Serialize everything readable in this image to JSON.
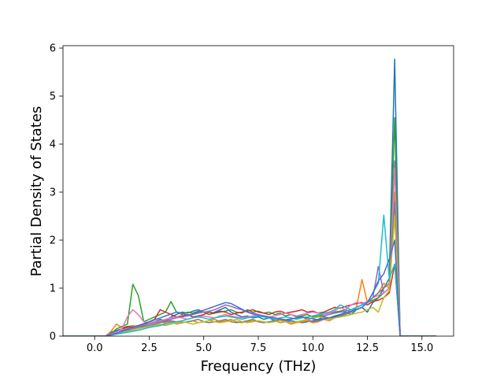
{
  "chart_data": {
    "type": "line",
    "title": "",
    "xlabel": "Frequency (THz)",
    "ylabel": "Partial Density of States",
    "xlim": [
      -1.45,
      16.45
    ],
    "ylim": [
      0,
      6.05
    ],
    "xticks": [
      0.0,
      2.5,
      5.0,
      7.5,
      10.0,
      12.5,
      15.0
    ],
    "xtick_labels": [
      "0.0",
      "2.5",
      "5.0",
      "7.5",
      "10.0",
      "12.5",
      "15.0"
    ],
    "yticks": [
      0,
      1,
      2,
      3,
      4,
      5,
      6
    ],
    "ytick_labels": [
      "0",
      "1",
      "2",
      "3",
      "4",
      "5",
      "6"
    ],
    "grid": false,
    "legend": "none",
    "x": [
      -1.45,
      0.0,
      0.5,
      0.75,
      1.0,
      1.25,
      1.5,
      1.75,
      2.0,
      2.25,
      2.5,
      2.75,
      3.0,
      3.25,
      3.5,
      3.75,
      4.0,
      4.25,
      4.5,
      4.75,
      5.0,
      5.25,
      5.5,
      5.75,
      6.0,
      6.25,
      6.5,
      6.75,
      7.0,
      7.25,
      7.5,
      7.75,
      8.0,
      8.25,
      8.5,
      8.75,
      9.0,
      9.25,
      9.5,
      9.75,
      10.0,
      10.25,
      10.5,
      10.75,
      11.0,
      11.25,
      11.5,
      11.75,
      12.0,
      12.25,
      12.5,
      12.75,
      13.0,
      13.25,
      13.5,
      13.75,
      14.0,
      14.25,
      15.65
    ],
    "series": [
      {
        "color": "#1f77b4",
        "values": [
          0,
          0,
          0,
          0.08,
          0.12,
          0.15,
          0.18,
          0.2,
          0.22,
          0.25,
          0.28,
          0.3,
          0.35,
          0.32,
          0.4,
          0.45,
          0.5,
          0.48,
          0.52,
          0.55,
          0.5,
          0.45,
          0.5,
          0.55,
          0.6,
          0.5,
          0.45,
          0.4,
          0.42,
          0.38,
          0.4,
          0.35,
          0.38,
          0.32,
          0.35,
          0.3,
          0.32,
          0.3,
          0.28,
          0.3,
          0.32,
          0.35,
          0.4,
          0.38,
          0.42,
          0.45,
          0.5,
          0.45,
          0.55,
          0.6,
          0.5,
          0.7,
          0.8,
          1.0,
          1.2,
          5.77,
          0,
          0,
          0
        ]
      },
      {
        "color": "#ff7f0e",
        "values": [
          0,
          0,
          0,
          0.1,
          0.25,
          0.18,
          0.2,
          0.22,
          0.2,
          0.18,
          0.2,
          0.25,
          0.22,
          0.28,
          0.3,
          0.25,
          0.28,
          0.3,
          0.32,
          0.28,
          0.3,
          0.32,
          0.35,
          0.3,
          0.32,
          0.35,
          0.3,
          0.28,
          0.3,
          0.32,
          0.3,
          0.28,
          0.3,
          0.32,
          0.28,
          0.3,
          0.25,
          0.28,
          0.3,
          0.32,
          0.28,
          0.3,
          0.35,
          0.32,
          0.38,
          0.4,
          0.45,
          0.5,
          0.6,
          1.18,
          0.7,
          0.8,
          0.9,
          1.1,
          1.0,
          3.0,
          0,
          0,
          0
        ]
      },
      {
        "color": "#2ca02c",
        "values": [
          0,
          0,
          0,
          0.05,
          0.15,
          0.2,
          0.25,
          1.08,
          0.85,
          0.3,
          0.35,
          0.4,
          0.45,
          0.5,
          0.72,
          0.5,
          0.45,
          0.5,
          0.48,
          0.52,
          0.5,
          0.45,
          0.48,
          0.5,
          0.52,
          0.55,
          0.5,
          0.48,
          0.55,
          0.5,
          0.52,
          0.48,
          0.5,
          0.45,
          0.48,
          0.42,
          0.45,
          0.4,
          0.42,
          0.45,
          0.4,
          0.42,
          0.45,
          0.48,
          0.5,
          0.52,
          0.55,
          0.5,
          0.6,
          0.65,
          0.7,
          0.75,
          0.8,
          0.9,
          1.0,
          4.55,
          0,
          0,
          0
        ]
      },
      {
        "color": "#d62728",
        "values": [
          0,
          0,
          0,
          0.05,
          0.1,
          0.15,
          0.2,
          0.18,
          0.22,
          0.25,
          0.3,
          0.35,
          0.55,
          0.5,
          0.45,
          0.4,
          0.42,
          0.45,
          0.4,
          0.42,
          0.45,
          0.5,
          0.48,
          0.52,
          0.5,
          0.45,
          0.48,
          0.5,
          0.52,
          0.55,
          0.5,
          0.48,
          0.45,
          0.5,
          0.52,
          0.48,
          0.5,
          0.52,
          0.55,
          0.5,
          0.52,
          0.48,
          0.5,
          0.55,
          0.6,
          0.58,
          0.62,
          0.65,
          0.68,
          0.7,
          0.65,
          0.72,
          0.75,
          0.8,
          0.9,
          1.5,
          0,
          0,
          0
        ]
      },
      {
        "color": "#9467bd",
        "values": [
          0,
          0,
          0,
          0.05,
          0.1,
          0.12,
          0.15,
          0.18,
          0.2,
          0.22,
          0.25,
          0.28,
          0.3,
          0.32,
          0.35,
          0.38,
          0.4,
          0.42,
          0.45,
          0.48,
          0.5,
          0.52,
          0.55,
          0.6,
          0.65,
          0.62,
          0.58,
          0.55,
          0.5,
          0.48,
          0.45,
          0.42,
          0.4,
          0.38,
          0.35,
          0.32,
          0.35,
          0.38,
          0.4,
          0.35,
          0.38,
          0.4,
          0.42,
          0.45,
          0.48,
          0.5,
          0.52,
          0.55,
          0.6,
          0.65,
          0.7,
          0.8,
          1.45,
          0.9,
          1.0,
          3.65,
          0,
          0,
          0
        ]
      },
      {
        "color": "#e377c2",
        "values": [
          0,
          0,
          0,
          0.04,
          0.08,
          0.15,
          0.4,
          0.55,
          0.45,
          0.3,
          0.28,
          0.3,
          0.32,
          0.35,
          0.38,
          0.4,
          0.38,
          0.35,
          0.38,
          0.4,
          0.42,
          0.4,
          0.38,
          0.42,
          0.45,
          0.42,
          0.4,
          0.38,
          0.4,
          0.42,
          0.45,
          0.42,
          0.4,
          0.42,
          0.45,
          0.48,
          0.45,
          0.42,
          0.45,
          0.48,
          0.5,
          0.48,
          0.45,
          0.48,
          0.52,
          0.6,
          0.55,
          0.65,
          0.7,
          0.68,
          0.72,
          0.8,
          0.85,
          0.9,
          1.0,
          3.5,
          0,
          0,
          0
        ]
      },
      {
        "color": "#7f7f7f",
        "values": [
          0,
          0,
          0,
          0.03,
          0.06,
          0.1,
          0.12,
          0.15,
          0.18,
          0.2,
          0.22,
          0.25,
          0.28,
          0.3,
          0.32,
          0.3,
          0.28,
          0.3,
          0.32,
          0.35,
          0.3,
          0.28,
          0.3,
          0.32,
          0.35,
          0.3,
          0.28,
          0.3,
          0.32,
          0.35,
          0.3,
          0.28,
          0.3,
          0.32,
          0.35,
          0.3,
          0.28,
          0.3,
          0.32,
          0.35,
          0.3,
          0.32,
          0.35,
          0.38,
          0.4,
          0.42,
          0.45,
          0.5,
          0.55,
          0.6,
          0.7,
          0.8,
          0.9,
          1.0,
          1.1,
          2.8,
          0,
          0,
          0
        ]
      },
      {
        "color": "#bcbd22",
        "values": [
          0,
          0,
          0,
          0.02,
          0.05,
          0.08,
          0.1,
          0.12,
          0.15,
          0.18,
          0.2,
          0.22,
          0.25,
          0.22,
          0.25,
          0.28,
          0.3,
          0.28,
          0.25,
          0.28,
          0.3,
          0.32,
          0.3,
          0.28,
          0.3,
          0.32,
          0.35,
          0.3,
          0.28,
          0.3,
          0.32,
          0.3,
          0.28,
          0.3,
          0.32,
          0.3,
          0.28,
          0.3,
          0.32,
          0.35,
          0.38,
          0.4,
          0.38,
          0.35,
          0.38,
          0.4,
          0.42,
          0.45,
          0.48,
          0.5,
          0.55,
          0.6,
          0.5,
          0.8,
          0.95,
          2.5,
          0,
          0,
          0
        ]
      },
      {
        "color": "#17becf",
        "values": [
          0,
          0,
          0,
          0.02,
          0.04,
          0.06,
          0.08,
          0.1,
          0.12,
          0.15,
          0.18,
          0.2,
          0.22,
          0.25,
          0.28,
          0.3,
          0.32,
          0.35,
          0.38,
          0.4,
          0.38,
          0.35,
          0.38,
          0.4,
          0.42,
          0.4,
          0.38,
          0.35,
          0.38,
          0.4,
          0.42,
          0.4,
          0.38,
          0.35,
          0.38,
          0.4,
          0.38,
          0.35,
          0.38,
          0.4,
          0.42,
          0.45,
          0.48,
          0.5,
          0.55,
          0.65,
          0.6,
          0.55,
          0.6,
          0.65,
          0.7,
          0.9,
          1.1,
          2.52,
          1.2,
          1.5,
          0,
          0,
          0
        ]
      },
      {
        "color": "#4a6bd6",
        "values": [
          0,
          0,
          0,
          0.03,
          0.06,
          0.1,
          0.14,
          0.18,
          0.22,
          0.26,
          0.3,
          0.34,
          0.38,
          0.42,
          0.46,
          0.5,
          0.48,
          0.44,
          0.46,
          0.5,
          0.54,
          0.58,
          0.62,
          0.66,
          0.7,
          0.68,
          0.62,
          0.56,
          0.5,
          0.46,
          0.44,
          0.42,
          0.4,
          0.38,
          0.36,
          0.34,
          0.36,
          0.38,
          0.4,
          0.38,
          0.36,
          0.34,
          0.36,
          0.38,
          0.4,
          0.44,
          0.48,
          0.52,
          0.56,
          0.6,
          0.7,
          0.9,
          1.15,
          1.3,
          1.6,
          2.0,
          0,
          0,
          0
        ]
      }
    ]
  }
}
